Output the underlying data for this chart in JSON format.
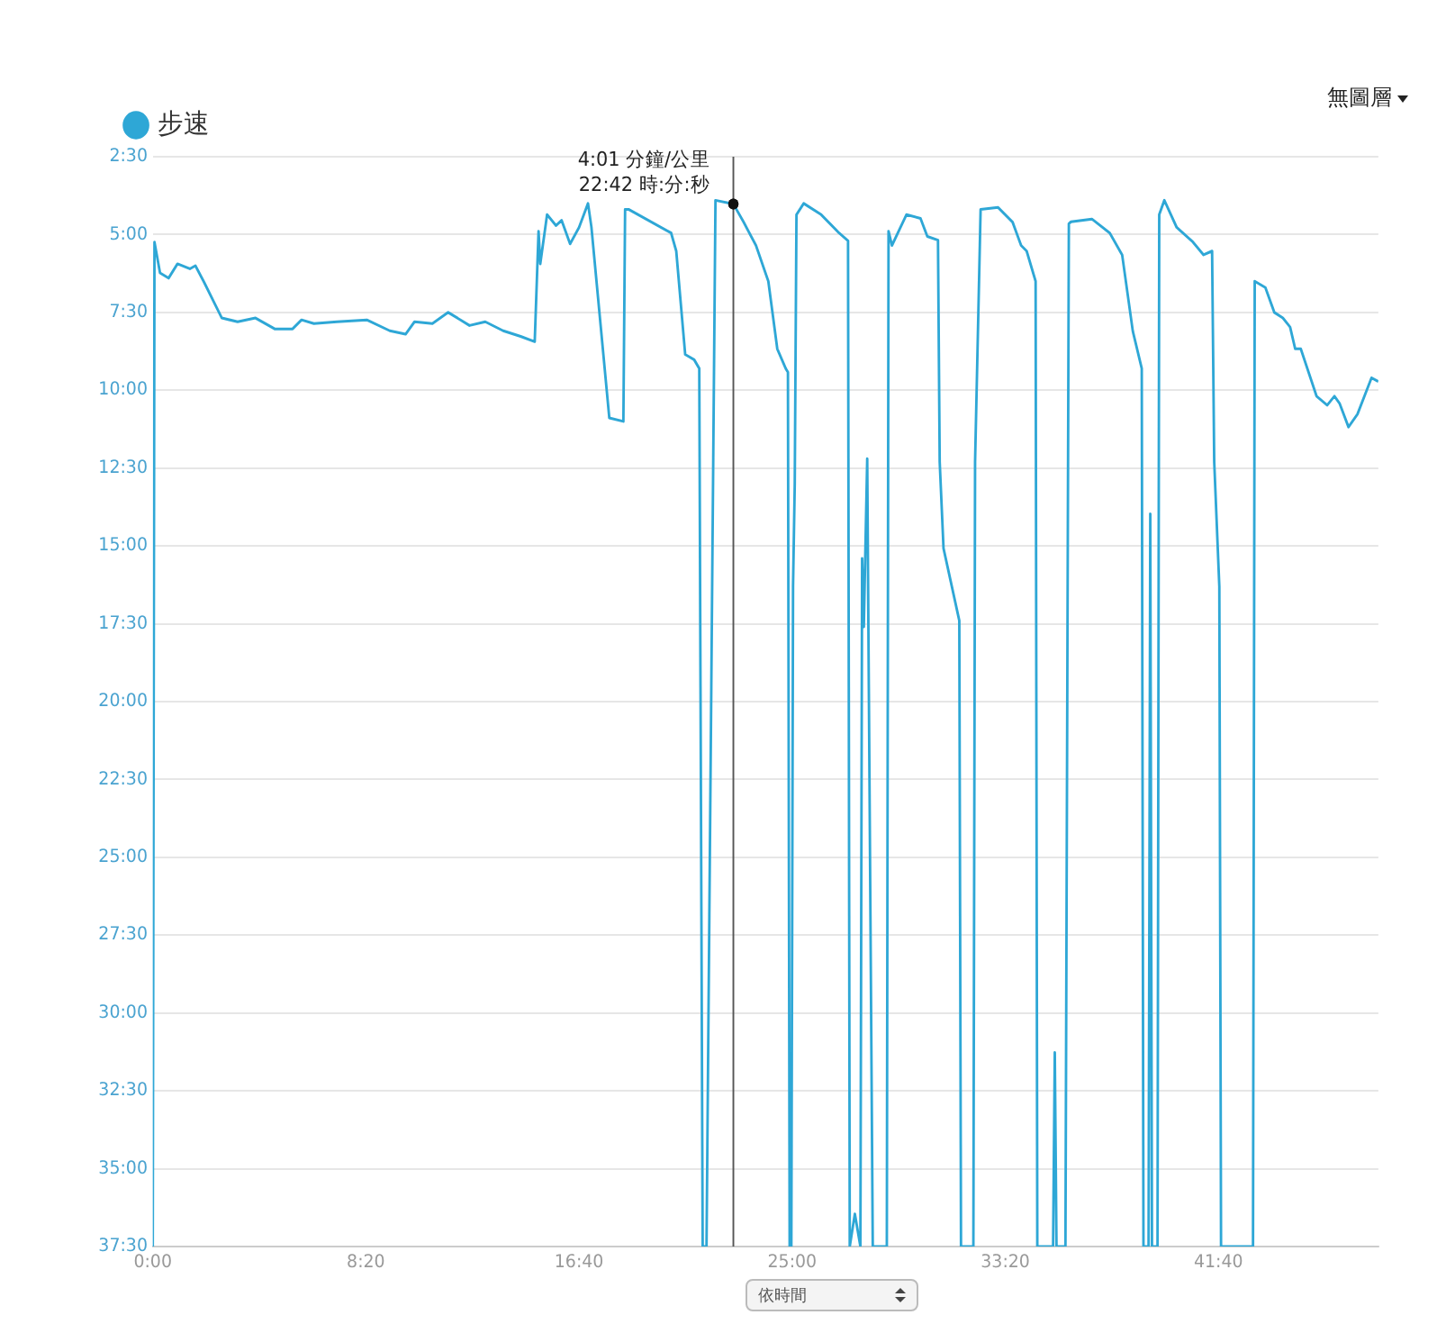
{
  "chart_data": {
    "type": "line",
    "x": [
      0,
      4,
      17,
      37,
      58,
      87,
      100,
      120,
      162,
      199,
      241,
      286,
      328,
      349,
      378,
      432,
      502,
      556,
      593,
      614,
      656,
      693,
      743,
      780,
      822,
      863,
      896,
      905,
      909,
      925,
      946,
      959,
      979,
      1000,
      1021,
      1029,
      1071,
      1104,
      1108,
      1116,
      1216,
      1228,
      1249,
      1270,
      1282,
      1290,
      1299,
      1320,
      1362,
      1386,
      1415,
      1444,
      1465,
      1485,
      1490,
      1494,
      1498,
      1502,
      1506,
      1510,
      1527,
      1568,
      1610,
      1631,
      1635,
      1647,
      1660,
      1664,
      1668,
      1676,
      1689,
      1722,
      1726,
      1734,
      1768,
      1801,
      1817,
      1842,
      1846,
      1855,
      1892,
      1896,
      1925,
      1929,
      1942,
      1983,
      2017,
      2037,
      2050,
      2071,
      2075,
      2112,
      2116,
      2120,
      2141,
      2149,
      2154,
      2203,
      2245,
      2274,
      2299,
      2320,
      2324,
      2336,
      2340,
      2344,
      2357,
      2361,
      2373,
      2402,
      2440,
      2465,
      2485,
      2490,
      2502,
      2506,
      2581,
      2585,
      2610,
      2631,
      2651,
      2668,
      2680,
      2693,
      2730,
      2755,
      2772,
      2784,
      2805,
      2826,
      2859,
      2875
    ],
    "series": [
      {
        "name": "步速",
        "color": "#2ea7d6",
        "values": [
          37.5,
          5.24,
          6.23,
          6.4,
          5.94,
          6.1,
          6.0,
          6.52,
          7.68,
          7.8,
          7.68,
          8.03,
          8.03,
          7.74,
          7.86,
          7.8,
          7.74,
          8.09,
          8.2,
          7.8,
          7.86,
          7.5,
          7.92,
          7.8,
          8.09,
          8.27,
          8.44,
          4.89,
          5.94,
          4.36,
          4.71,
          4.54,
          5.3,
          4.77,
          4.0,
          4.76,
          10.89,
          11.0,
          4.19,
          4.19,
          4.95,
          5.53,
          8.85,
          9.02,
          9.3,
          37.5,
          37.5,
          3.9,
          4.02,
          4.6,
          5.35,
          6.5,
          8.67,
          9.31,
          9.42,
          37.5,
          37.5,
          16.3,
          13.0,
          4.36,
          4.0,
          4.36,
          4.95,
          5.2,
          37.5,
          36.45,
          37.5,
          15.4,
          17.6,
          12.2,
          37.5,
          37.5,
          4.89,
          5.35,
          4.36,
          4.48,
          5.06,
          5.18,
          12.3,
          15.08,
          17.4,
          37.5,
          37.5,
          12.3,
          4.19,
          4.13,
          4.6,
          5.35,
          5.53,
          6.5,
          37.5,
          37.5,
          31.27,
          37.5,
          37.5,
          4.65,
          4.59,
          4.5,
          4.95,
          5.65,
          8.1,
          9.3,
          37.5,
          37.5,
          13.97,
          37.5,
          37.5,
          4.36,
          3.9,
          4.77,
          5.24,
          5.65,
          5.53,
          12.3,
          16.3,
          37.5,
          37.5,
          6.5,
          6.7,
          7.5,
          7.68,
          7.97,
          8.67,
          8.67,
          10.19,
          10.48,
          10.19,
          10.42,
          11.18,
          10.77,
          9.6,
          9.72
        ]
      }
    ],
    "xlim": [
      0,
      2875
    ],
    "xticks": [
      {
        "value": 0,
        "label": "0:00"
      },
      {
        "value": 500,
        "label": "8:20"
      },
      {
        "value": 1000,
        "label": "16:40"
      },
      {
        "value": 1500,
        "label": "25:00"
      },
      {
        "value": 2000,
        "label": "33:20"
      },
      {
        "value": 2500,
        "label": "41:40"
      }
    ],
    "ylim": [
      37.5,
      2.5
    ],
    "yticks": [
      {
        "value": 2.5,
        "label": "2:30"
      },
      {
        "value": 5,
        "label": "5:00"
      },
      {
        "value": 7.5,
        "label": "7:30"
      },
      {
        "value": 10,
        "label": "10:00"
      },
      {
        "value": 12.5,
        "label": "12:30"
      },
      {
        "value": 15,
        "label": "15:00"
      },
      {
        "value": 17.5,
        "label": "17:30"
      },
      {
        "value": 20,
        "label": "20:00"
      },
      {
        "value": 22.5,
        "label": "22:30"
      },
      {
        "value": 25,
        "label": "25:00"
      },
      {
        "value": 27.5,
        "label": "27:30"
      },
      {
        "value": 30,
        "label": "30:00"
      },
      {
        "value": 32.5,
        "label": "32:30"
      },
      {
        "value": 35,
        "label": "35:00"
      },
      {
        "value": 37.5,
        "label": "37:30"
      }
    ],
    "ref_lines": [
      {
        "axis": "x",
        "value": 1362,
        "color": "#555555"
      }
    ],
    "annotations": [
      {
        "text": "4:01 分鐘/公里",
        "x": 1362,
        "y": 4.02
      },
      {
        "text": "22:42 時:分:秒",
        "x": 1362,
        "y": 4.02
      },
      "無圖層",
      "依時間"
    ],
    "grid": "y",
    "legend": "top left",
    "marker": "none",
    "line_style": "solid"
  }
}
